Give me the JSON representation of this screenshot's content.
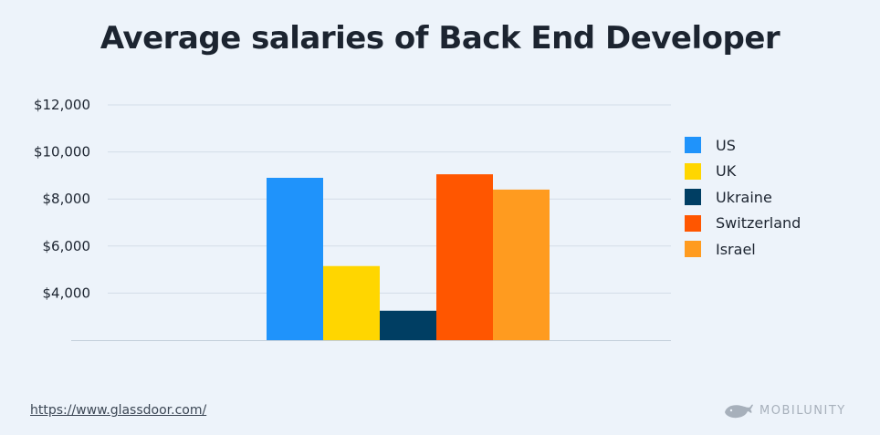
{
  "chart_data": {
    "type": "bar",
    "title": "Average salaries of Back End Developer",
    "xlabel": "",
    "ylabel": "",
    "categories": [
      "US",
      "UK",
      "Ukraine",
      "Switzerland",
      "Israel"
    ],
    "values": [
      8900,
      5150,
      3250,
      9050,
      8400
    ],
    "colors": [
      "#1f93fb",
      "#ffd600",
      "#003e63",
      "#ff5600",
      "#ff9b1f"
    ],
    "ylim": [
      2000,
      12000
    ],
    "yticks": [
      4000,
      6000,
      8000,
      10000,
      12000
    ],
    "ytick_labels": [
      "$4,000",
      "$6,000",
      "$8,000",
      "$10,000",
      "$12,000"
    ],
    "grid": true,
    "legend_position": "right",
    "legend": [
      "US",
      "UK",
      "Ukraine",
      "Switzerland",
      "Israel"
    ]
  },
  "footer": {
    "source": "https://www.glassdoor.com/",
    "brand": "MOBILUNITY",
    "brand_icon": "whale-icon"
  }
}
